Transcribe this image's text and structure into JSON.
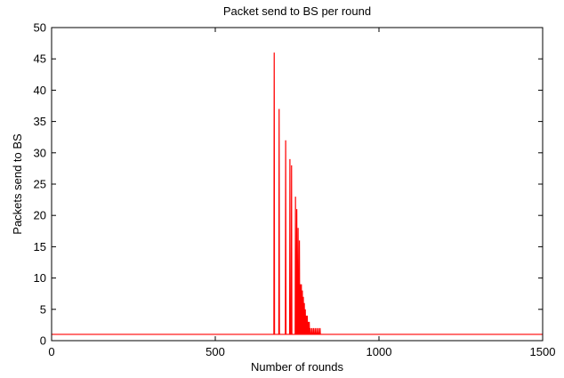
{
  "chart_data": {
    "type": "line",
    "title": "Packet send to BS per round",
    "xlabel": "Number of rounds",
    "ylabel": "Packets send to BS",
    "xlim": [
      0,
      1500
    ],
    "ylim": [
      0,
      50
    ],
    "xticks": [
      0,
      500,
      1000,
      1500
    ],
    "yticks": [
      0,
      5,
      10,
      15,
      20,
      25,
      30,
      35,
      40,
      45,
      50
    ],
    "grid": false,
    "legend": "none",
    "series": [
      {
        "color": "#ff0000",
        "baseline": 1,
        "peaks": [
          {
            "x": 680,
            "y": 46
          },
          {
            "x": 695,
            "y": 37
          },
          {
            "x": 715,
            "y": 32
          },
          {
            "x": 728,
            "y": 29
          },
          {
            "x": 733,
            "y": 28
          },
          {
            "x": 745,
            "y": 23
          },
          {
            "x": 749,
            "y": 21
          },
          {
            "x": 753,
            "y": 18
          },
          {
            "x": 757,
            "y": 16
          },
          {
            "x": 760,
            "y": 9
          },
          {
            "x": 763,
            "y": 9
          },
          {
            "x": 766,
            "y": 8
          },
          {
            "x": 769,
            "y": 7
          },
          {
            "x": 772,
            "y": 6
          },
          {
            "x": 775,
            "y": 5
          },
          {
            "x": 778,
            "y": 4
          },
          {
            "x": 781,
            "y": 4
          },
          {
            "x": 784,
            "y": 3
          },
          {
            "x": 787,
            "y": 3
          },
          {
            "x": 790,
            "y": 2
          },
          {
            "x": 795,
            "y": 2
          },
          {
            "x": 800,
            "y": 2
          },
          {
            "x": 805,
            "y": 2
          },
          {
            "x": 810,
            "y": 2
          },
          {
            "x": 815,
            "y": 2
          },
          {
            "x": 820,
            "y": 2
          }
        ]
      }
    ]
  }
}
